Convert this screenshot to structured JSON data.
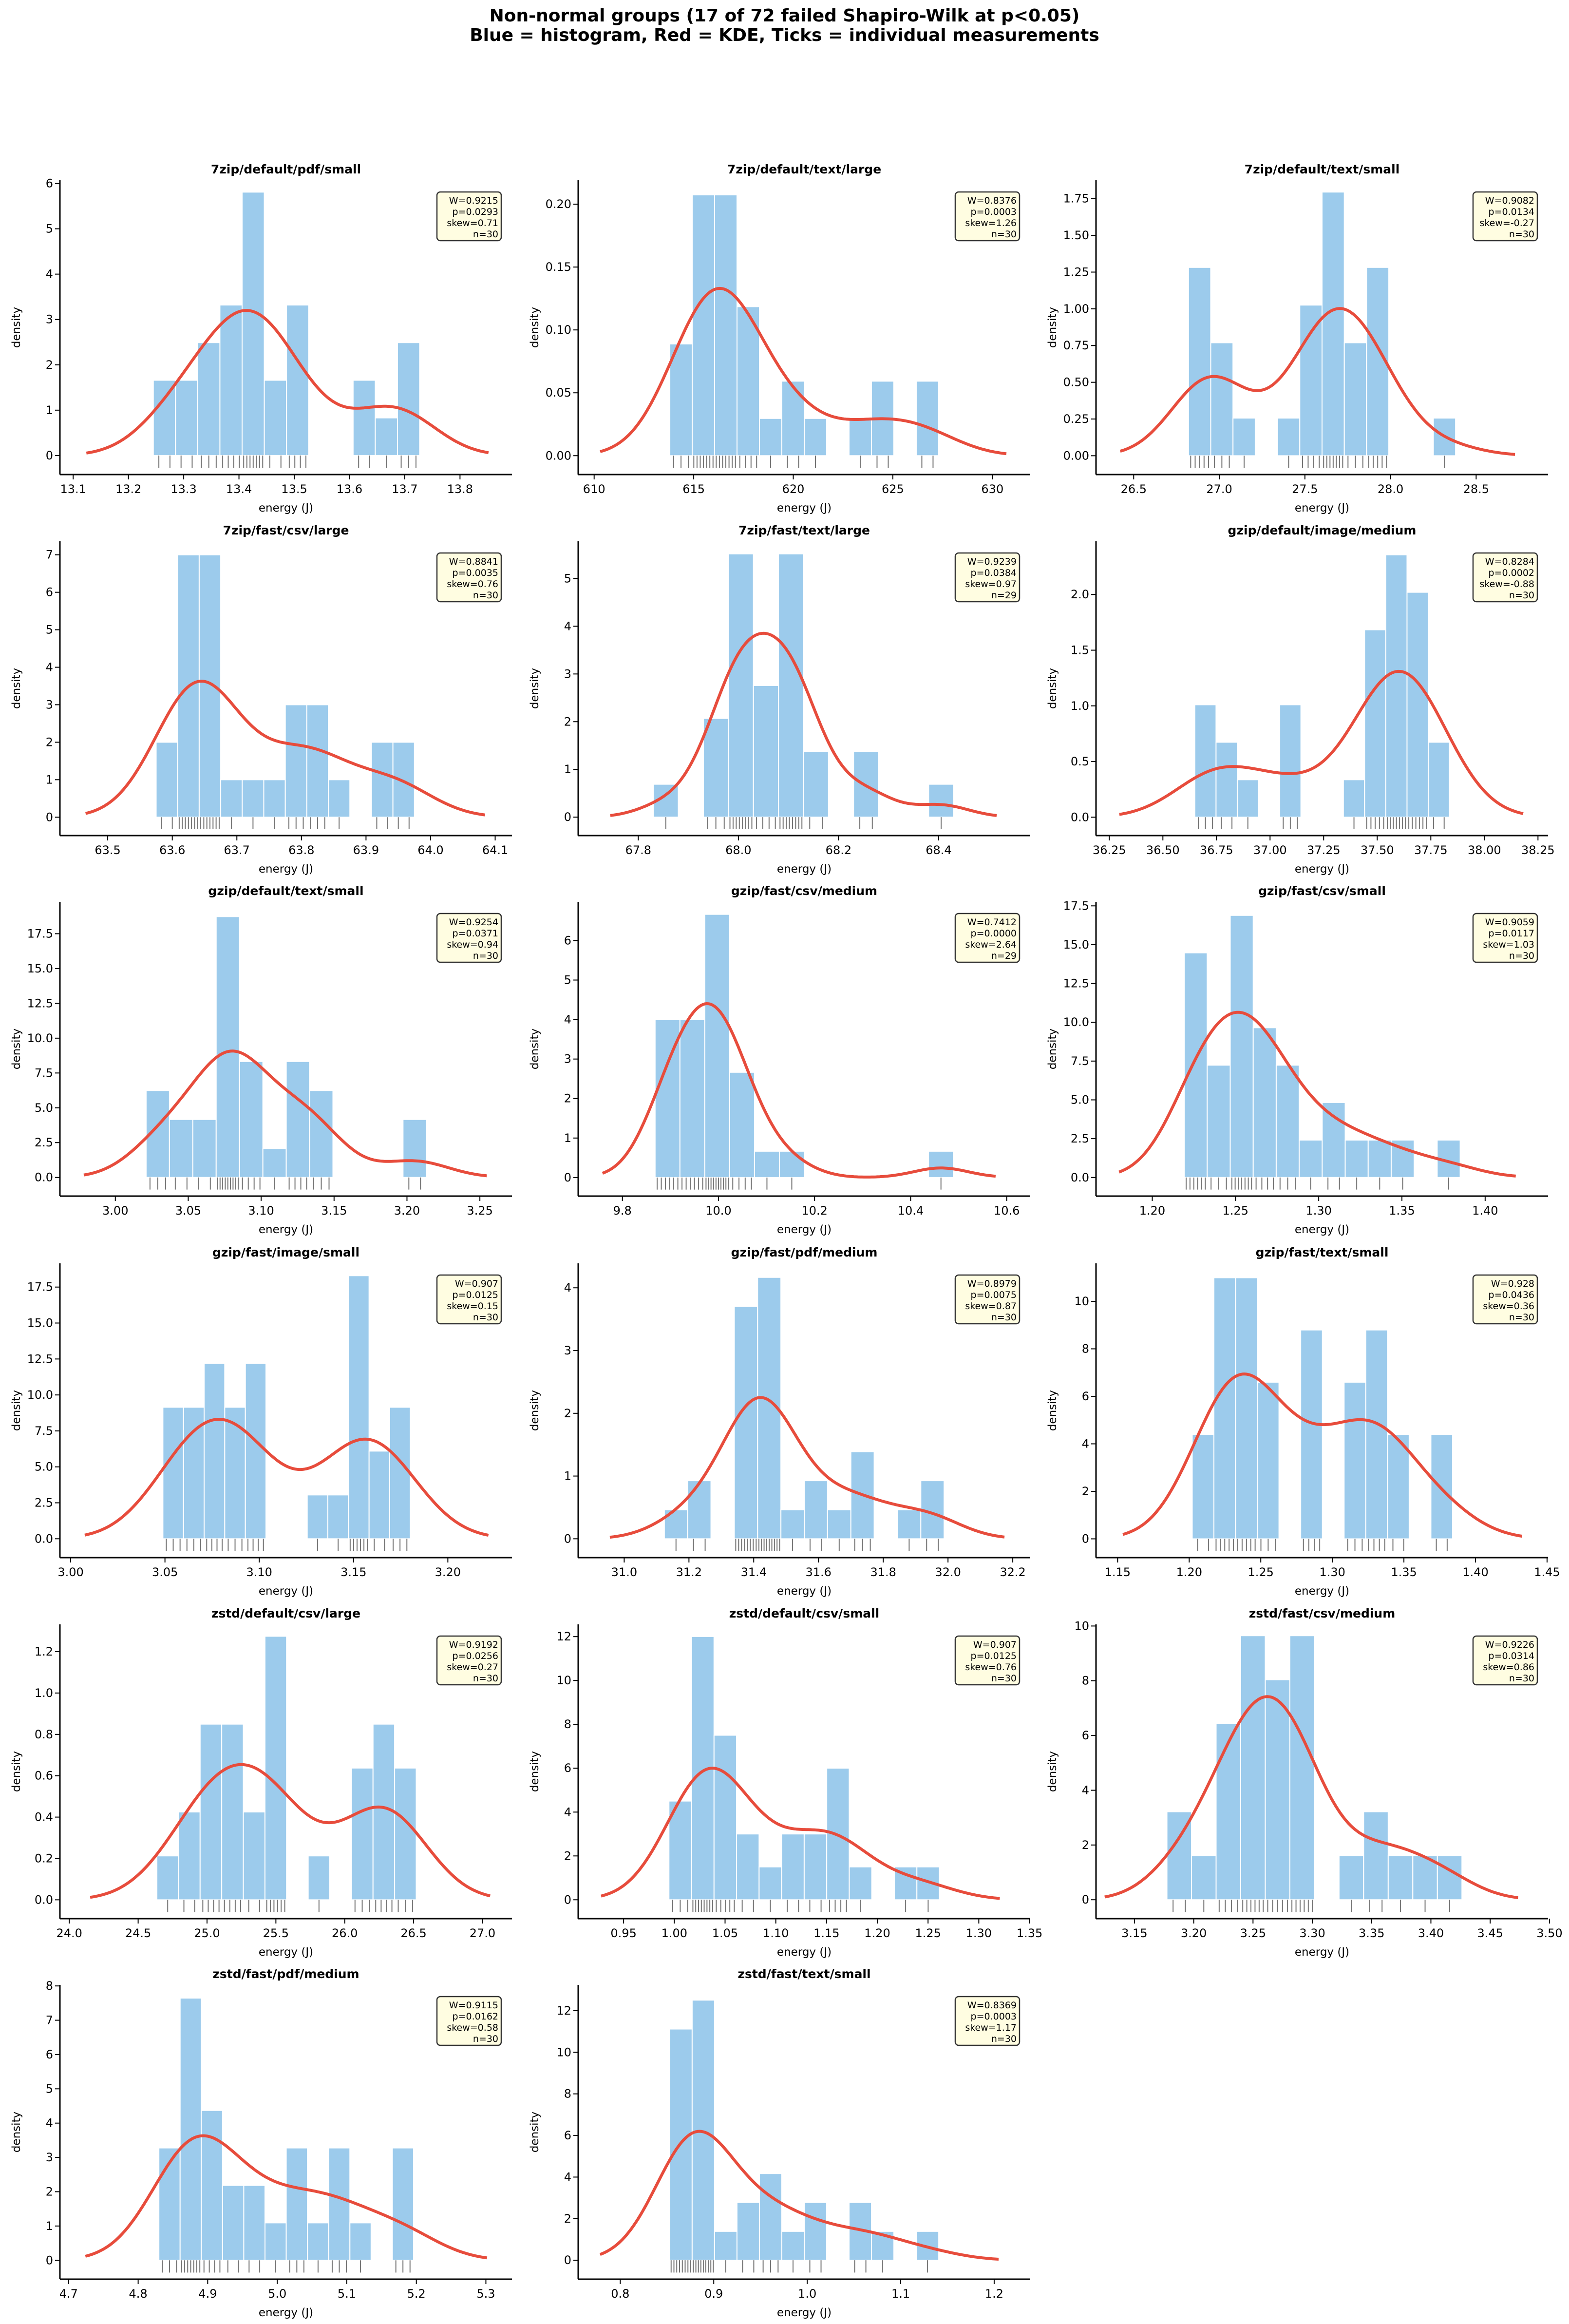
{
  "figure": {
    "title_line1": "Non-normal groups (17 of 72 failed Shapiro-Wilk at p<0.05)",
    "title_line2": "Blue = histogram, Red = KDE, Ticks = individual measurements"
  },
  "colors": {
    "histogram": "#9ccbec",
    "kde": "#e74c3c",
    "rug": "#000000",
    "stats_box": "#fffde1"
  },
  "chart_data": [
    {
      "type": "bar",
      "title": "7zip/default/pdf/small",
      "xlabel": "energy (J)",
      "ylabel": "density",
      "stats": [
        "W=0.9215",
        "p=0.0293",
        "skew=0.71",
        "n=30"
      ],
      "n": 30,
      "bin_range": [
        13.245,
        13.727
      ],
      "counts": [
        2,
        2,
        3,
        4,
        7,
        2,
        4,
        0,
        0,
        2,
        1,
        3
      ],
      "xlim": [
        13.076,
        13.894
      ],
      "ylim": [
        -0.42,
        6.07
      ],
      "xticks": [
        "13.1",
        "13.2",
        "13.3",
        "13.4",
        "13.5",
        "13.6",
        "13.7",
        "13.8"
      ],
      "yticks": [
        "0",
        "1",
        "2",
        "3",
        "4",
        "5",
        "6"
      ]
    },
    {
      "type": "bar",
      "title": "7zip/default/text/large",
      "xlabel": "energy (J)",
      "ylabel": "density",
      "stats": [
        "W=0.8376",
        "p=0.0003",
        "skew=1.26",
        "n=30"
      ],
      "n": 30,
      "bin_range": [
        613.8,
        627.3
      ],
      "counts": [
        3,
        7,
        7,
        4,
        1,
        2,
        1,
        0,
        1,
        2,
        0,
        2
      ],
      "xlim": [
        609.2,
        631.9
      ],
      "ylim": [
        -0.015,
        0.219
      ],
      "xticks": [
        "610",
        "615",
        "620",
        "625",
        "630"
      ],
      "yticks": [
        "0.00",
        "0.05",
        "0.10",
        "0.15",
        "0.20"
      ]
    },
    {
      "type": "bar",
      "title": "7zip/default/text/small",
      "xlabel": "energy (J)",
      "ylabel": "density",
      "stats": [
        "W=0.9082",
        "p=0.0134",
        "skew=-0.27",
        "n=30"
      ],
      "n": 30,
      "bin_range": [
        26.82,
        28.38
      ],
      "counts": [
        5,
        3,
        1,
        0,
        1,
        4,
        7,
        3,
        5,
        0,
        0,
        1
      ],
      "xlim": [
        26.28,
        28.92
      ],
      "ylim": [
        -0.128,
        1.875
      ],
      "xticks": [
        "26.5",
        "27.0",
        "27.5",
        "28.0",
        "28.5"
      ],
      "yticks": [
        "0.00",
        "0.25",
        "0.50",
        "0.75",
        "1.00",
        "1.25",
        "1.50",
        "1.75"
      ]
    },
    {
      "type": "bar",
      "title": "7zip/fast/csv/large",
      "xlabel": "energy (J)",
      "ylabel": "density",
      "stats": [
        "W=0.8841",
        "p=0.0035",
        "skew=0.76",
        "n=30"
      ],
      "n": 30,
      "bin_range": [
        63.575,
        63.975
      ],
      "counts": [
        2,
        7,
        7,
        1,
        1,
        1,
        3,
        3,
        1,
        0,
        2,
        2
      ],
      "xlim": [
        63.426,
        64.126
      ],
      "ylim": [
        -0.49,
        7.36
      ],
      "xticks": [
        "63.5",
        "63.6",
        "63.7",
        "63.8",
        "63.9",
        "64.0",
        "64.1"
      ],
      "yticks": [
        "0",
        "1",
        "2",
        "3",
        "4",
        "5",
        "6",
        "7"
      ]
    },
    {
      "type": "bar",
      "title": "7zip/fast/text/large",
      "xlabel": "energy (J)",
      "ylabel": "density",
      "stats": [
        "W=0.9239",
        "p=0.0384",
        "skew=0.97",
        "n=29"
      ],
      "n": 29,
      "bin_range": [
        67.83,
        68.43
      ],
      "counts": [
        1,
        0,
        3,
        8,
        4,
        8,
        2,
        0,
        2,
        0,
        0,
        1
      ],
      "xlim": [
        67.68,
        68.583
      ],
      "ylim": [
        -0.386,
        5.78
      ],
      "xticks": [
        "67.8",
        "68.0",
        "68.2",
        "68.4"
      ],
      "yticks": [
        "0",
        "1",
        "2",
        "3",
        "4",
        "5"
      ]
    },
    {
      "type": "bar",
      "title": "gzip/default/image/medium",
      "xlabel": "energy (J)",
      "ylabel": "density",
      "stats": [
        "W=0.8284",
        "p=0.0002",
        "skew=-0.88",
        "n=30"
      ],
      "n": 30,
      "bin_range": [
        36.649,
        37.837
      ],
      "counts": [
        3,
        2,
        1,
        0,
        3,
        0,
        0,
        1,
        5,
        7,
        6,
        2
      ],
      "xlim": [
        36.188,
        38.297
      ],
      "ylim": [
        -0.165,
        2.478
      ],
      "xticks": [
        "36.25",
        "36.50",
        "36.75",
        "37.00",
        "37.25",
        "37.50",
        "37.75",
        "38.00",
        "38.25"
      ],
      "yticks": [
        "0.0",
        "0.5",
        "1.0",
        "1.5",
        "2.0"
      ]
    },
    {
      "type": "bar",
      "title": "gzip/default/text/small",
      "xlabel": "energy (J)",
      "ylabel": "density",
      "stats": [
        "W=0.9254",
        "p=0.0371",
        "skew=0.94",
        "n=30"
      ],
      "n": 30,
      "bin_range": [
        3.0211,
        3.2133
      ],
      "counts": [
        3,
        2,
        2,
        9,
        4,
        1,
        4,
        3,
        0,
        0,
        0,
        2
      ],
      "xlim": [
        2.962,
        3.272
      ],
      "ylim": [
        -1.34,
        19.79
      ],
      "xticks": [
        "3.00",
        "3.05",
        "3.10",
        "3.15",
        "3.20",
        "3.25"
      ],
      "yticks": [
        "0.0",
        "2.5",
        "5.0",
        "7.5",
        "10.0",
        "12.5",
        "15.0",
        "17.5"
      ]
    },
    {
      "type": "bar",
      "title": "gzip/fast/csv/medium",
      "xlabel": "energy (J)",
      "ylabel": "density",
      "stats": [
        "W=0.7412",
        "p=0.0000",
        "skew=2.64",
        "n=29"
      ],
      "n": 29,
      "bin_range": [
        9.868,
        10.489
      ],
      "counts": [
        6,
        6,
        10,
        4,
        1,
        1,
        0,
        0,
        0,
        0,
        0,
        1
      ],
      "xlim": [
        9.708,
        10.649
      ],
      "ylim": [
        -0.47,
        6.98
      ],
      "xticks": [
        "9.8",
        "10.0",
        "10.2",
        "10.4",
        "10.6"
      ],
      "yticks": [
        "0",
        "1",
        "2",
        "3",
        "4",
        "5",
        "6"
      ]
    },
    {
      "type": "bar",
      "title": "gzip/fast/csv/small",
      "xlabel": "energy (J)",
      "ylabel": "density",
      "stats": [
        "W=0.9059",
        "p=0.0117",
        "skew=1.03",
        "n=30"
      ],
      "n": 30,
      "bin_range": [
        1.2192,
        1.385
      ],
      "counts": [
        6,
        3,
        7,
        4,
        3,
        1,
        2,
        1,
        1,
        1,
        0,
        1
      ],
      "xlim": [
        1.1662,
        1.4378
      ],
      "ylim": [
        -1.2,
        17.76
      ],
      "xticks": [
        "1.20",
        "1.25",
        "1.30",
        "1.35",
        "1.40"
      ],
      "yticks": [
        "0.0",
        "2.5",
        "5.0",
        "7.5",
        "10.0",
        "12.5",
        "15.0",
        "17.5"
      ]
    },
    {
      "type": "bar",
      "title": "gzip/fast/image/small",
      "xlabel": "energy (J)",
      "ylabel": "density",
      "stats": [
        "W=0.907",
        "p=0.0125",
        "skew=0.15",
        "n=30"
      ],
      "n": 30,
      "bin_range": [
        3.0489,
        3.1801
      ],
      "counts": [
        3,
        3,
        4,
        3,
        4,
        0,
        0,
        1,
        1,
        6,
        2,
        3
      ],
      "xlim": [
        2.9943,
        3.234
      ],
      "ylim": [
        -1.31,
        19.15
      ],
      "xticks": [
        "3.00",
        "3.05",
        "3.10",
        "3.15",
        "3.20"
      ],
      "yticks": [
        "0.0",
        "2.5",
        "5.0",
        "7.5",
        "10.0",
        "12.5",
        "15.0",
        "17.5"
      ]
    },
    {
      "type": "bar",
      "title": "gzip/fast/pdf/medium",
      "xlabel": "energy (J)",
      "ylabel": "density",
      "stats": [
        "W=0.8979",
        "p=0.0075",
        "skew=0.87",
        "n=30"
      ],
      "n": 30,
      "bin_range": [
        31.124,
        31.988
      ],
      "counts": [
        1,
        2,
        0,
        8,
        9,
        1,
        2,
        1,
        3,
        0,
        1,
        2
      ],
      "xlim": [
        30.858,
        32.254
      ],
      "ylim": [
        -0.3,
        4.39
      ],
      "xticks": [
        "31.0",
        "31.2",
        "31.4",
        "31.6",
        "31.8",
        "32.0",
        "32.2"
      ],
      "yticks": [
        "0",
        "1",
        "2",
        "3",
        "4"
      ]
    },
    {
      "type": "bar",
      "title": "gzip/fast/text/small",
      "xlabel": "energy (J)",
      "ylabel": "density",
      "stats": [
        "W=0.928",
        "p=0.0436",
        "skew=0.36",
        "n=30"
      ],
      "n": 30,
      "bin_range": [
        1.2021,
        1.384
      ],
      "counts": [
        2,
        5,
        5,
        3,
        0,
        4,
        0,
        3,
        4,
        2,
        0,
        2
      ],
      "xlim": [
        1.1349,
        1.4507
      ],
      "ylim": [
        -0.79,
        11.6
      ],
      "xticks": [
        "1.15",
        "1.20",
        "1.25",
        "1.30",
        "1.35",
        "1.40",
        "1.45"
      ],
      "yticks": [
        "0",
        "2",
        "4",
        "6",
        "8",
        "10"
      ]
    },
    {
      "type": "bar",
      "title": "zstd/default/csv/large",
      "xlabel": "energy (J)",
      "ylabel": "density",
      "stats": [
        "W=0.9192",
        "p=0.0256",
        "skew=0.27",
        "n=30"
      ],
      "n": 30,
      "bin_range": [
        24.636,
        26.519
      ],
      "counts": [
        1,
        2,
        4,
        4,
        2,
        6,
        0,
        1,
        0,
        3,
        4,
        3
      ],
      "xlim": [
        23.932,
        27.214
      ],
      "ylim": [
        -0.091,
        1.332
      ],
      "xticks": [
        "24.0",
        "24.5",
        "25.0",
        "25.5",
        "26.0",
        "26.5",
        "27.0"
      ],
      "yticks": [
        "0.0",
        "0.2",
        "0.4",
        "0.6",
        "0.8",
        "1.0",
        "1.2"
      ]
    },
    {
      "type": "bar",
      "title": "zstd/default/csv/small",
      "xlabel": "energy (J)",
      "ylabel": "density",
      "stats": [
        "W=0.907",
        "p=0.0125",
        "skew=0.76",
        "n=30"
      ],
      "n": 30,
      "bin_range": [
        0.9947,
        1.2612
      ],
      "counts": [
        3,
        8,
        5,
        2,
        1,
        2,
        2,
        4,
        1,
        0,
        1,
        1
      ],
      "xlim": [
        0.9053,
        1.3507
      ],
      "ylim": [
        -0.86,
        12.56
      ],
      "xticks": [
        "0.95",
        "1.00",
        "1.05",
        "1.10",
        "1.15",
        "1.20",
        "1.25",
        "1.30",
        "1.35"
      ],
      "yticks": [
        "0",
        "2",
        "4",
        "6",
        "8",
        "10",
        "12"
      ]
    },
    {
      "type": "bar",
      "title": "zstd/fast/csv/medium",
      "xlabel": "energy (J)",
      "ylabel": "density",
      "stats": [
        "W=0.9226",
        "p=0.0314",
        "skew=0.86",
        "n=30"
      ],
      "n": 30,
      "bin_range": [
        3.1774,
        3.4262
      ],
      "counts": [
        2,
        1,
        4,
        6,
        5,
        6,
        0,
        1,
        2,
        1,
        1,
        1
      ],
      "xlim": [
        3.1176,
        3.4988
      ],
      "ylim": [
        -0.69,
        10.06
      ],
      "xticks": [
        "3.15",
        "3.20",
        "3.25",
        "3.30",
        "3.35",
        "3.40",
        "3.45",
        "3.50"
      ],
      "yticks": [
        "0",
        "2",
        "4",
        "6",
        "8",
        "10"
      ]
    },
    {
      "type": "bar",
      "title": "zstd/fast/pdf/medium",
      "xlabel": "energy (J)",
      "ylabel": "density",
      "stats": [
        "W=0.9115",
        "p=0.0162",
        "skew=0.58",
        "n=30"
      ],
      "n": 30,
      "bin_range": [
        4.8298,
        5.196
      ],
      "counts": [
        3,
        7,
        4,
        2,
        2,
        1,
        3,
        1,
        3,
        1,
        0,
        3
      ],
      "xlim": [
        4.6875,
        5.3375
      ],
      "ylim": [
        -0.55,
        8.03
      ],
      "xticks": [
        "4.7",
        "4.8",
        "4.9",
        "5.0",
        "5.1",
        "5.2",
        "5.3"
      ],
      "yticks": [
        "0",
        "1",
        "2",
        "3",
        "4",
        "5",
        "6",
        "7",
        "8"
      ]
    },
    {
      "type": "bar",
      "title": "zstd/fast/text/small",
      "xlabel": "energy (J)",
      "ylabel": "density",
      "stats": [
        "W=0.8369",
        "p=0.0003",
        "skew=1.17",
        "n=30"
      ],
      "n": 30,
      "bin_range": [
        0.8529,
        1.1407
      ],
      "counts": [
        8,
        9,
        1,
        2,
        3,
        1,
        2,
        0,
        2,
        1,
        0,
        1
      ],
      "xlim": [
        0.755,
        1.2386
      ],
      "ylim": [
        -0.91,
        13.24
      ],
      "xticks": [
        "0.8",
        "0.9",
        "1.0",
        "1.1",
        "1.2"
      ],
      "yticks": [
        "0",
        "2",
        "4",
        "6",
        "8",
        "10",
        "12"
      ]
    }
  ]
}
